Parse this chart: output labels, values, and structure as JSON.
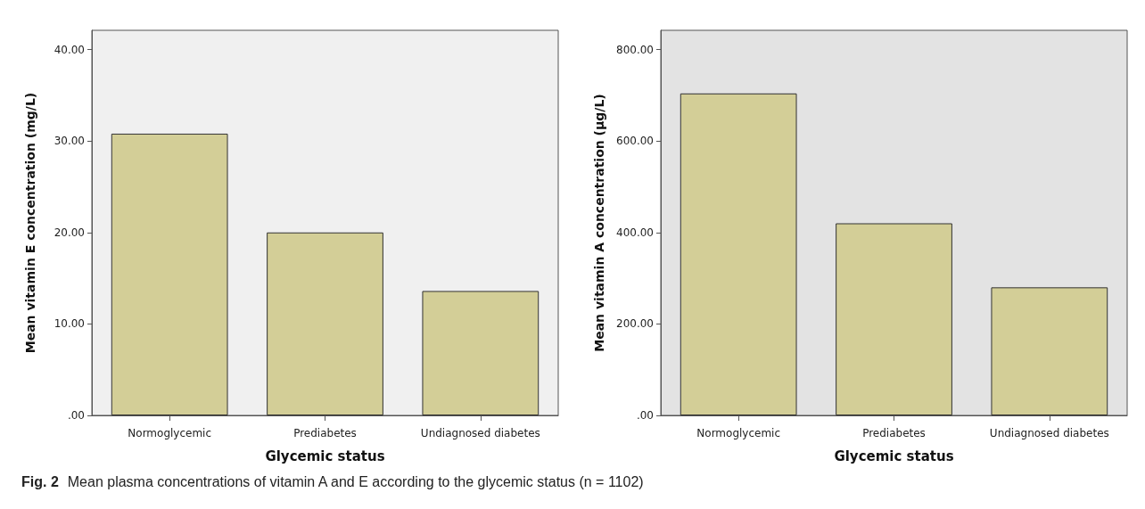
{
  "chart_data": [
    {
      "type": "bar",
      "categories": [
        "Normoglycemic",
        "Prediabetes",
        "Undiagnosed diabetes"
      ],
      "values": [
        30.8,
        20.0,
        13.6
      ],
      "color": "#d3ce97",
      "xlabel": "Glycemic status",
      "ylabel": "Mean vitamin E concentration (mg/L)",
      "ylim": [
        0,
        42.1
      ],
      "yticks": [
        {
          "value": 0,
          "label": ".00"
        },
        {
          "value": 10,
          "label": "10.00"
        },
        {
          "value": 20,
          "label": "20.00"
        },
        {
          "value": 30,
          "label": "30.00"
        },
        {
          "value": 40,
          "label": "40.00"
        }
      ],
      "annotations": [
        "Fig. 2",
        "Mean plasma concentrations of vitamin A and E according to the glycemic status (n = 1102)"
      ]
    },
    {
      "type": "bar",
      "categories": [
        "Normoglycemic",
        "Prediabetes",
        "Undiagnosed diabetes"
      ],
      "values": [
        704,
        420,
        280
      ],
      "color": "#d3ce97",
      "xlabel": "Glycemic status",
      "ylabel": "Mean vitamin A concentration (µg/L)",
      "ylim": [
        0,
        842
      ],
      "yticks": [
        {
          "value": 0,
          "label": ".00"
        },
        {
          "value": 200,
          "label": "200.00"
        },
        {
          "value": 400,
          "label": "400.00"
        },
        {
          "value": 600,
          "label": "600.00"
        },
        {
          "value": 800,
          "label": "800.00"
        }
      ]
    }
  ]
}
